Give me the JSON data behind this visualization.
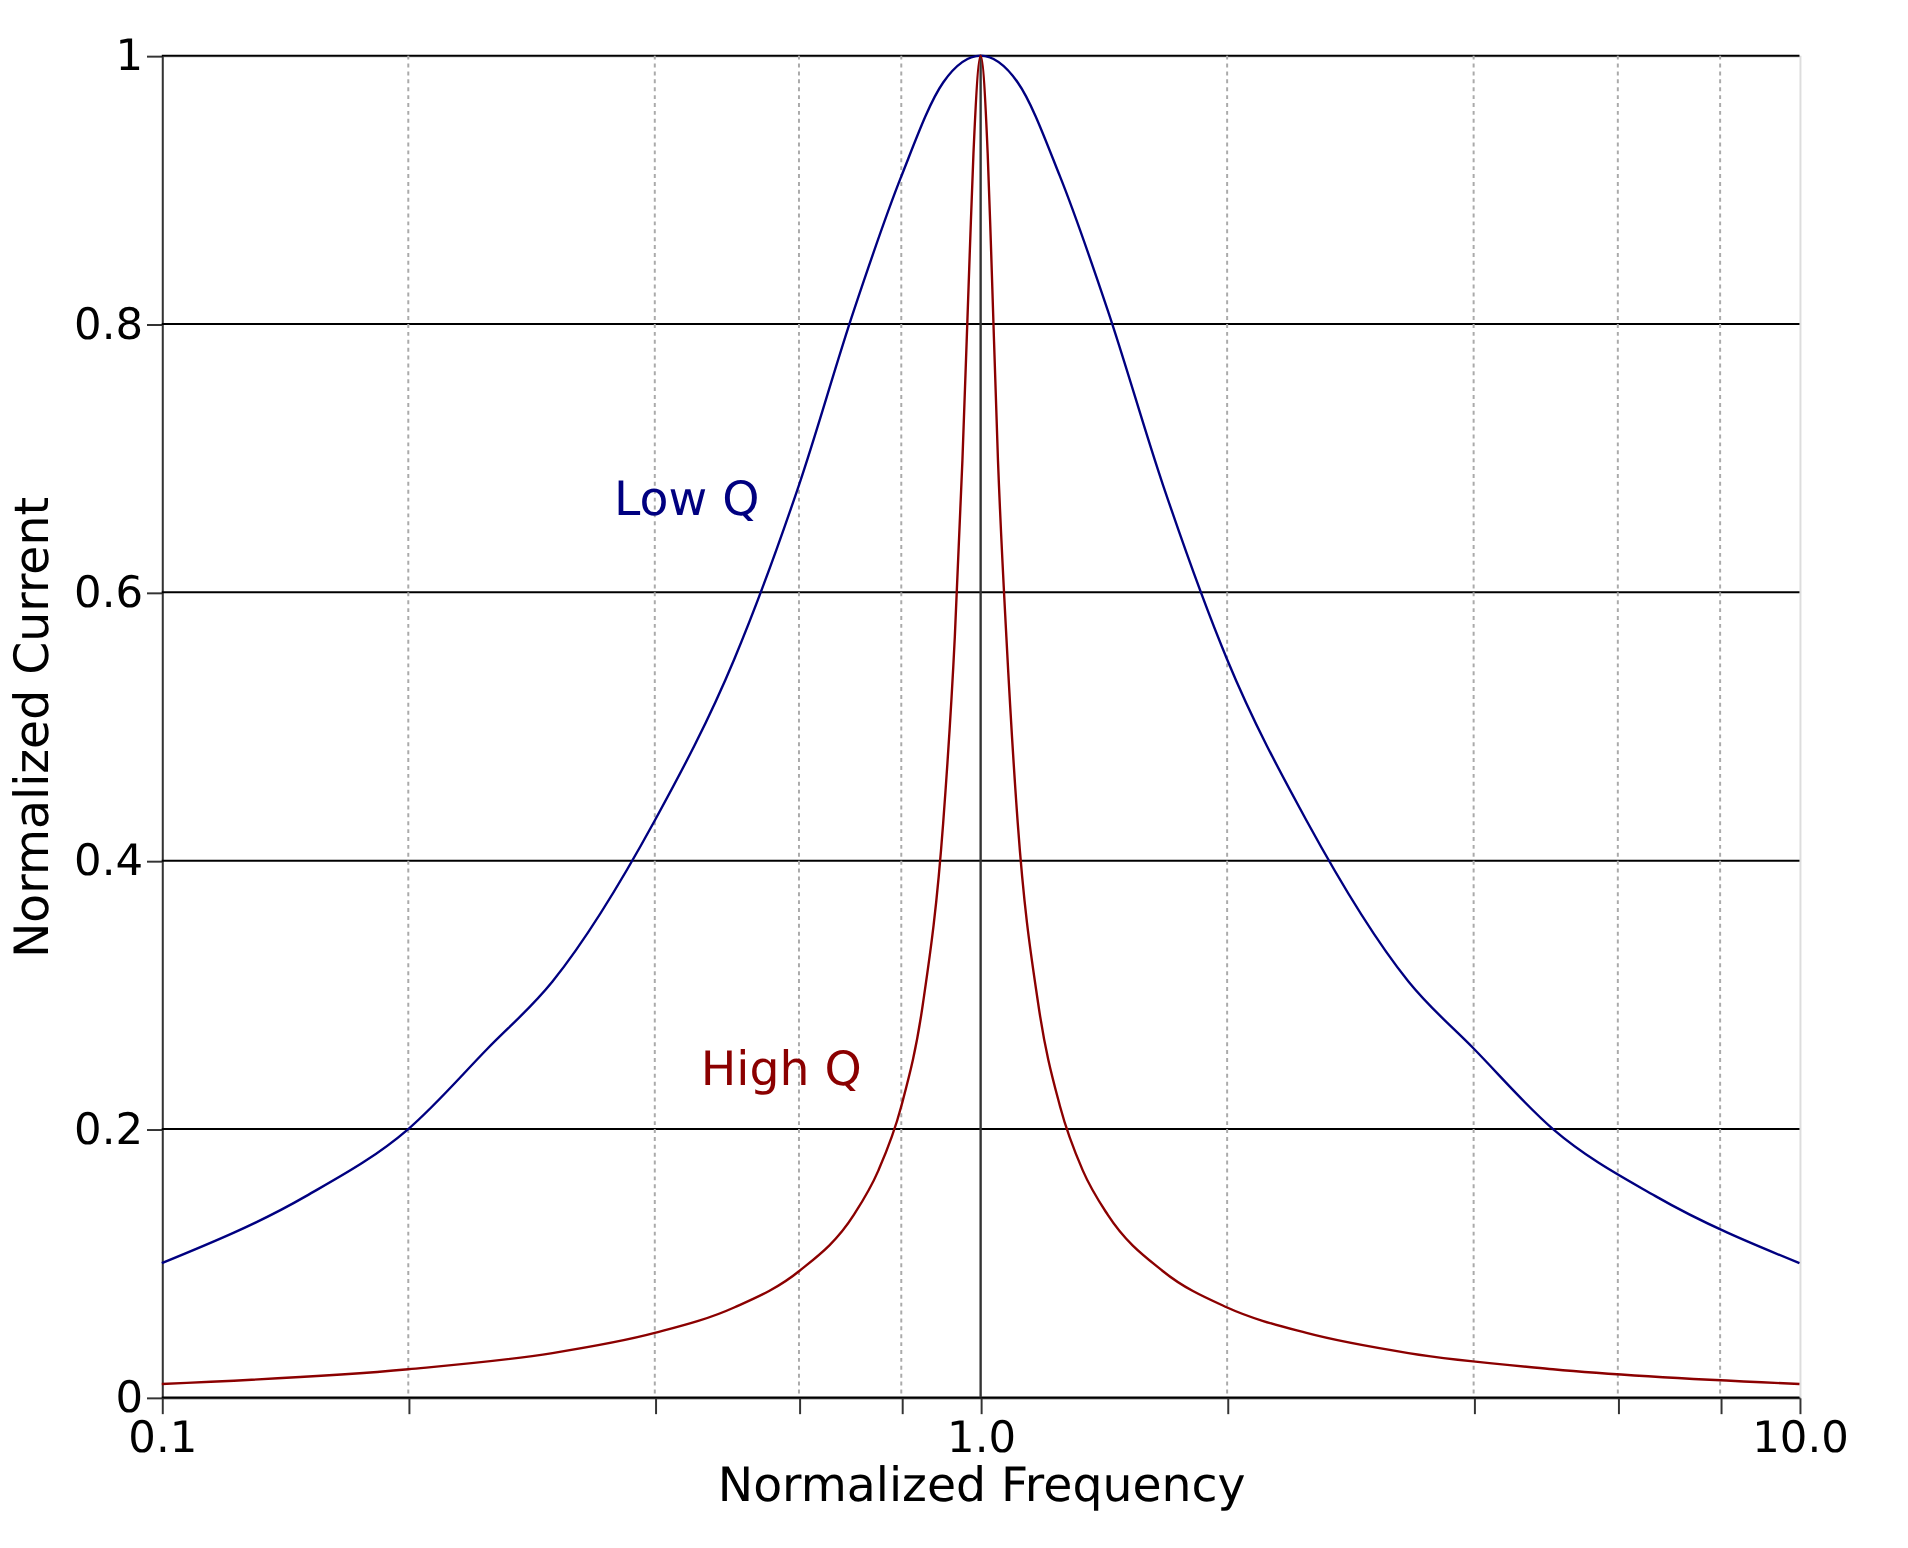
{
  "chart_data": {
    "type": "line",
    "xlabel": "Normalized Frequency",
    "ylabel": "Normalized Current",
    "xlim": [
      0.1,
      10
    ],
    "ylim": [
      0,
      1
    ],
    "xticks": [
      {
        "value": 0.1,
        "label": "0.1"
      },
      {
        "value": 0.2,
        "label": null
      },
      {
        "value": 0.4,
        "label": null
      },
      {
        "value": 0.6,
        "label": null
      },
      {
        "value": 0.8,
        "label": null
      },
      {
        "value": 1,
        "label": "1.0"
      },
      {
        "value": 2,
        "label": null
      },
      {
        "value": 4,
        "label": null
      },
      {
        "value": 6,
        "label": null
      },
      {
        "value": 8,
        "label": null
      },
      {
        "value": 10,
        "label": "10.0"
      }
    ],
    "yticks": [
      0,
      0.2,
      0.4,
      0.6,
      0.8,
      1
    ],
    "ref_lines": [
      {
        "axis": "x",
        "value": 1,
        "color": "#333333",
        "line_style": "solid"
      }
    ],
    "log": "x",
    "grid": true,
    "legend": false,
    "marker": "none",
    "line_style": "solid",
    "series": [
      {
        "name": "Low Q",
        "color": "#000080",
        "x": [
          0.1,
          0.15,
          0.2,
          0.25,
          0.3,
          0.4,
          0.5,
          0.6,
          0.7,
          0.8,
          0.9,
          1,
          1.11,
          1.25,
          1.43,
          1.67,
          2,
          2.5,
          3.33,
          4,
          5,
          6.67,
          10
        ],
        "values": [
          0.1,
          0.15,
          0.2,
          0.26,
          0.31,
          0.43,
          0.55,
          0.68,
          0.81,
          0.91,
          0.98,
          1,
          0.98,
          0.91,
          0.81,
          0.68,
          0.55,
          0.43,
          0.31,
          0.26,
          0.2,
          0.15,
          0.1
        ]
      },
      {
        "name": "High Q",
        "color": "#8b0000",
        "x": [
          0.1,
          0.2,
          0.3,
          0.4,
          0.5,
          0.6,
          0.7,
          0.75,
          0.8,
          0.85,
          0.9,
          0.93,
          0.95,
          0.97,
          0.98,
          1,
          1.02,
          1.03,
          1.05,
          1.075,
          1.11,
          1.176,
          1.25,
          1.333,
          1.43,
          1.67,
          2,
          2.5,
          3.33,
          5,
          10
        ],
        "values": [
          0.01,
          0.021,
          0.033,
          0.048,
          0.067,
          0.094,
          0.136,
          0.169,
          0.217,
          0.293,
          0.428,
          0.567,
          0.698,
          0.854,
          0.927,
          1,
          0.927,
          0.854,
          0.698,
          0.567,
          0.428,
          0.293,
          0.217,
          0.169,
          0.136,
          0.094,
          0.067,
          0.048,
          0.033,
          0.021,
          0.01
        ]
      }
    ]
  }
}
